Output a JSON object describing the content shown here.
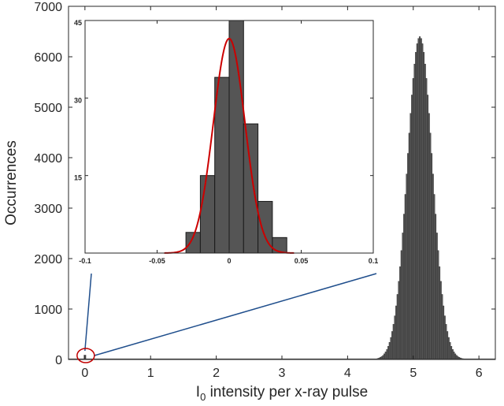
{
  "chart_data": [
    {
      "type": "bar",
      "subtype": "histogram",
      "xlabel": "I",
      "xlabel_subscript": "0",
      "xlabel_rest": " intensity per x-ray pulse",
      "ylabel": "Occurrences",
      "xlim": [
        -0.25,
        6.25
      ],
      "ylim": [
        0,
        7000
      ],
      "xticks": [
        0,
        1,
        2,
        3,
        4,
        5,
        6
      ],
      "xtick_labels": [
        "0",
        "1",
        "2",
        "3",
        "4",
        "5",
        "6"
      ],
      "yticks": [
        0,
        1000,
        2000,
        3000,
        4000,
        5000,
        6000,
        7000
      ],
      "ytick_labels": [
        "0",
        "1000",
        "2000",
        "3000",
        "4000",
        "5000",
        "6000",
        "7000"
      ],
      "grid": false,
      "bar_color": "#555555",
      "distribution": {
        "center": 5.1,
        "sigma": 0.19,
        "peak": 6400,
        "bin_width": 0.02,
        "range": [
          4.45,
          5.85
        ]
      },
      "zero_bin": {
        "x": 0,
        "value": 45
      },
      "highlight": {
        "shape": "ellipse",
        "center_x": 0,
        "center_y": 0,
        "color": "#c00000"
      },
      "connector_color": "#1f4e8c"
    },
    {
      "type": "bar",
      "subtype": "histogram-inset",
      "xlim": [
        -0.1,
        0.1
      ],
      "ylim": [
        0,
        45
      ],
      "xticks": [
        -0.1,
        -0.05,
        0,
        0.05,
        0.1
      ],
      "xtick_labels": [
        "-0.1",
        "-0.05",
        "0",
        "0.05",
        "0.1"
      ],
      "yticks": [
        15,
        30,
        45
      ],
      "ytick_labels": [
        "15",
        "30",
        "45"
      ],
      "bin_edges": [
        -0.03,
        -0.02,
        -0.01,
        0,
        0.01,
        0.02,
        0.03,
        0.04
      ],
      "values": [
        4,
        15,
        34,
        45,
        25,
        10,
        3
      ],
      "bar_color": "#555555",
      "fit": {
        "type": "gaussian",
        "mu": 0,
        "sigma": 0.011,
        "amplitude": 41.5,
        "color": "#cc0000"
      }
    }
  ]
}
